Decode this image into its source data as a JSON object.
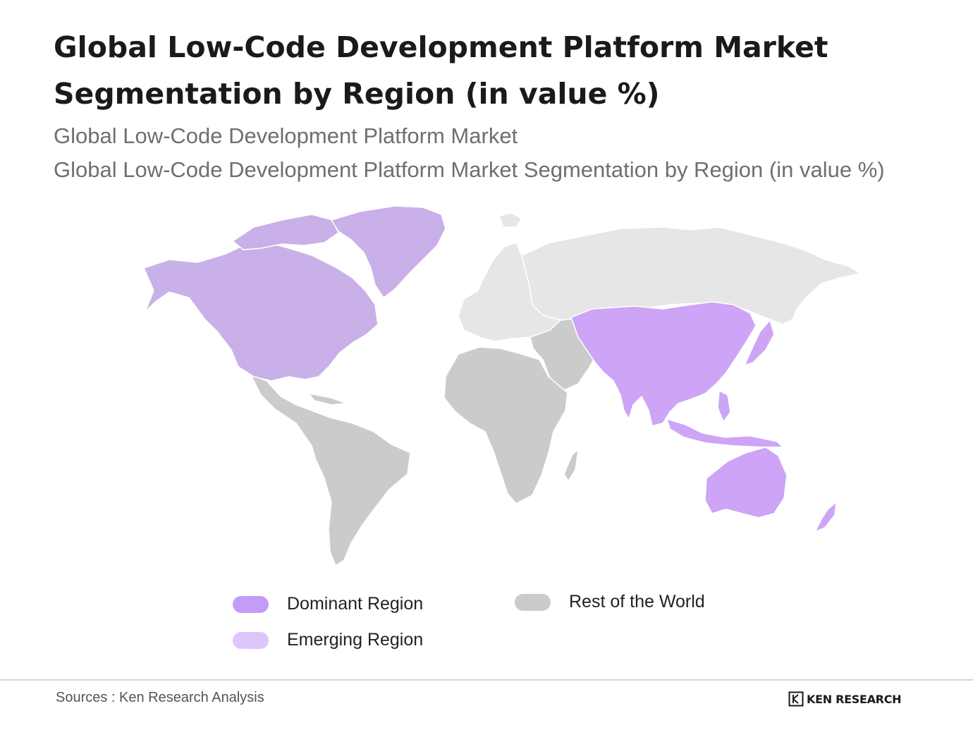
{
  "title": "Global Low-Code Development Platform Market Segmentation by Region (in value %)",
  "subtitle_1": "Global Low-Code Development Platform Market",
  "subtitle_2": "Global Low-Code Development Platform Market Segmentation by Region (in value %)",
  "legend": {
    "dominant": {
      "label": "Dominant Region",
      "color": "#c39cf7"
    },
    "emerging": {
      "label": "Emerging Region",
      "color": "#dcc6fb"
    },
    "rest": {
      "label": "Rest of the World",
      "color": "#cbcbcb"
    }
  },
  "map_regions": {
    "north_america": "dominant",
    "greenland": "dominant",
    "east_asia_south_asia": "dominant",
    "southeast_asia": "dominant",
    "oceania": "dominant",
    "europe": "rest",
    "russia": "rest",
    "middle_east": "rest",
    "latin_america": "rest",
    "africa": "rest"
  },
  "colors": {
    "map_dominant": "#c9b0e8",
    "map_dominant_asia": "#cda4f6",
    "map_rest_dark": "#cbcbcb",
    "map_rest_light": "#e6e6e6",
    "map_border": "#ffffff"
  },
  "footer": {
    "source": "Sources : Ken Research Analysis",
    "brand": "KEN RESEARCH",
    "brand_logo": "ken-research-logo"
  }
}
